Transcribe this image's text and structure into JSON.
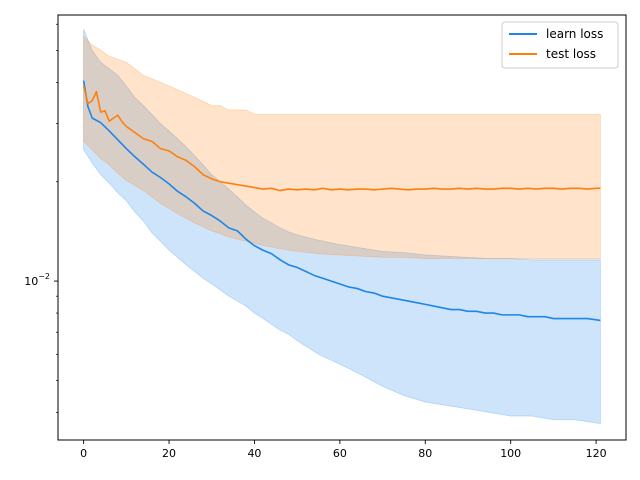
{
  "chart_data": {
    "type": "line",
    "title": "",
    "xlabel": "",
    "ylabel": "",
    "x_range": [
      0,
      121
    ],
    "xlim": [
      -6,
      127
    ],
    "y_scale": "log",
    "ylim": [
      0.0033,
      0.064
    ],
    "grid": false,
    "legend_position": "top-right",
    "x_ticks": [
      0,
      20,
      40,
      60,
      80,
      100,
      120
    ],
    "x_tick_labels": [
      "0",
      "20",
      "40",
      "60",
      "80",
      "100",
      "120"
    ],
    "y_major_ticks": [
      0.01
    ],
    "y_major_tick_label": {
      "base": "10",
      "exponent": "−2"
    },
    "y_minor_ticks": [
      0.004,
      0.005,
      0.006,
      0.007,
      0.008,
      0.009,
      0.02,
      0.03,
      0.04,
      0.05,
      0.06
    ],
    "series": [
      {
        "name": "learn loss",
        "color": "#1f85e8",
        "band_color": "#1f85e8",
        "mean": {
          "x": [
            0,
            1,
            2,
            4,
            6,
            8,
            10,
            12,
            14,
            16,
            18,
            20,
            22,
            24,
            26,
            28,
            30,
            32,
            34,
            36,
            38,
            40,
            42,
            44,
            46,
            48,
            50,
            52,
            54,
            56,
            58,
            60,
            62,
            64,
            66,
            68,
            70,
            72,
            74,
            76,
            78,
            80,
            82,
            84,
            86,
            88,
            90,
            92,
            94,
            96,
            98,
            100,
            102,
            104,
            106,
            108,
            110,
            112,
            114,
            116,
            118,
            121
          ],
          "y": [
            0.0405,
            0.0338,
            0.0312,
            0.0302,
            0.0285,
            0.0268,
            0.0252,
            0.0238,
            0.0226,
            0.0214,
            0.0206,
            0.0197,
            0.0187,
            0.018,
            0.0172,
            0.0163,
            0.0158,
            0.0152,
            0.0145,
            0.0142,
            0.0134,
            0.0128,
            0.0124,
            0.0121,
            0.0116,
            0.0112,
            0.011,
            0.0107,
            0.0104,
            0.0102,
            0.01,
            0.0098,
            0.0096,
            0.0095,
            0.0093,
            0.0092,
            0.009,
            0.0089,
            0.0088,
            0.0087,
            0.0086,
            0.0085,
            0.0084,
            0.0083,
            0.0082,
            0.0082,
            0.0081,
            0.0081,
            0.008,
            0.008,
            0.0079,
            0.0079,
            0.0079,
            0.0078,
            0.0078,
            0.0078,
            0.0077,
            0.0077,
            0.0077,
            0.0077,
            0.0077,
            0.0076
          ]
        },
        "band": {
          "x": [
            0,
            2,
            4,
            6,
            8,
            10,
            12,
            14,
            16,
            18,
            20,
            22,
            24,
            26,
            28,
            30,
            32,
            34,
            36,
            38,
            40,
            42,
            44,
            46,
            48,
            50,
            55,
            60,
            65,
            70,
            75,
            80,
            85,
            90,
            95,
            100,
            105,
            110,
            115,
            121
          ],
          "upper": [
            0.058,
            0.05,
            0.046,
            0.044,
            0.042,
            0.039,
            0.036,
            0.034,
            0.032,
            0.03,
            0.0285,
            0.027,
            0.0255,
            0.024,
            0.0225,
            0.021,
            0.02,
            0.019,
            0.018,
            0.017,
            0.0162,
            0.0155,
            0.015,
            0.0145,
            0.0141,
            0.0138,
            0.0133,
            0.0129,
            0.0126,
            0.0123,
            0.0122,
            0.012,
            0.0119,
            0.0118,
            0.0117,
            0.0117,
            0.0116,
            0.0116,
            0.0116,
            0.0116
          ],
          "lower": [
            0.025,
            0.0228,
            0.021,
            0.0198,
            0.0185,
            0.0175,
            0.0162,
            0.0152,
            0.014,
            0.0132,
            0.0124,
            0.0118,
            0.0112,
            0.0107,
            0.0102,
            0.0098,
            0.0094,
            0.009,
            0.0087,
            0.0084,
            0.008,
            0.0077,
            0.0074,
            0.0071,
            0.0069,
            0.0066,
            0.006,
            0.0056,
            0.0052,
            0.0048,
            0.0045,
            0.0043,
            0.0042,
            0.0041,
            0.004,
            0.0039,
            0.0039,
            0.0038,
            0.0038,
            0.0037
          ]
        }
      },
      {
        "name": "test loss",
        "color": "#ff7f0e",
        "band_color": "#ff7f0e",
        "mean": {
          "x": [
            0,
            1,
            2,
            3,
            4,
            5,
            6,
            7,
            8,
            9,
            10,
            12,
            14,
            16,
            18,
            20,
            22,
            24,
            26,
            28,
            30,
            32,
            34,
            36,
            38,
            40,
            42,
            44,
            46,
            48,
            50,
            52,
            54,
            56,
            58,
            60,
            62,
            64,
            66,
            68,
            70,
            72,
            74,
            76,
            78,
            80,
            82,
            84,
            86,
            88,
            90,
            92,
            94,
            96,
            98,
            100,
            102,
            104,
            106,
            108,
            110,
            112,
            114,
            116,
            118,
            120,
            121
          ],
          "y": [
            0.039,
            0.0345,
            0.0352,
            0.0375,
            0.0325,
            0.0328,
            0.0305,
            0.0312,
            0.0318,
            0.0304,
            0.0294,
            0.0282,
            0.027,
            0.0265,
            0.0252,
            0.0248,
            0.0238,
            0.0232,
            0.0222,
            0.021,
            0.0204,
            0.02,
            0.0198,
            0.0196,
            0.0194,
            0.0192,
            0.019,
            0.0191,
            0.0188,
            0.019,
            0.0189,
            0.019,
            0.0189,
            0.0191,
            0.0189,
            0.019,
            0.0189,
            0.019,
            0.019,
            0.0189,
            0.019,
            0.0191,
            0.019,
            0.0189,
            0.019,
            0.019,
            0.0191,
            0.019,
            0.019,
            0.0191,
            0.019,
            0.0191,
            0.019,
            0.019,
            0.0191,
            0.0191,
            0.019,
            0.0191,
            0.019,
            0.0191,
            0.0191,
            0.019,
            0.0191,
            0.0191,
            0.019,
            0.0191,
            0.0191
          ]
        },
        "band": {
          "x": [
            0,
            2,
            4,
            6,
            8,
            10,
            12,
            14,
            16,
            18,
            20,
            22,
            24,
            26,
            28,
            30,
            32,
            34,
            36,
            38,
            40,
            45,
            50,
            55,
            60,
            65,
            70,
            75,
            80,
            85,
            90,
            95,
            100,
            105,
            110,
            115,
            121
          ],
          "upper": [
            0.055,
            0.052,
            0.05,
            0.048,
            0.047,
            0.046,
            0.044,
            0.042,
            0.041,
            0.04,
            0.039,
            0.038,
            0.037,
            0.036,
            0.035,
            0.034,
            0.034,
            0.033,
            0.033,
            0.033,
            0.032,
            0.032,
            0.032,
            0.032,
            0.032,
            0.032,
            0.032,
            0.032,
            0.032,
            0.032,
            0.032,
            0.032,
            0.032,
            0.032,
            0.032,
            0.032,
            0.032
          ],
          "lower": [
            0.0265,
            0.025,
            0.0235,
            0.0225,
            0.0212,
            0.0202,
            0.0195,
            0.0188,
            0.018,
            0.0172,
            0.0166,
            0.016,
            0.0155,
            0.015,
            0.0146,
            0.0142,
            0.0139,
            0.0136,
            0.0134,
            0.0132,
            0.013,
            0.0126,
            0.0123,
            0.0121,
            0.012,
            0.0119,
            0.0118,
            0.0118,
            0.0117,
            0.0117,
            0.0117,
            0.0117,
            0.0117,
            0.0117,
            0.0117,
            0.0117,
            0.0117
          ]
        }
      }
    ]
  }
}
